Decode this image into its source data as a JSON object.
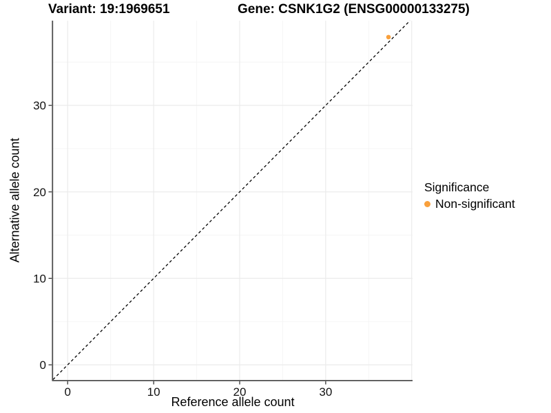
{
  "header": {
    "variant_title": "Variant: 19:1969651",
    "gene_title": "Gene: CSNK1G2 (ENSG00000133275)"
  },
  "chart_data": {
    "type": "scatter",
    "xlabel": "Reference allele count",
    "ylabel": "Alternative allele count",
    "xlim": [
      -1.7,
      40.1
    ],
    "ylim": [
      -1.75,
      39.8
    ],
    "x_ticks": [
      0,
      10,
      20,
      30
    ],
    "y_ticks": [
      0,
      10,
      20,
      30
    ],
    "x_grid_major": [
      0,
      10,
      20,
      30,
      40
    ],
    "x_grid_minor": [
      5,
      15,
      25,
      35
    ],
    "y_grid_major": [
      0,
      10,
      20,
      30
    ],
    "y_grid_minor": [
      5,
      15,
      25,
      35
    ],
    "grid": "on",
    "reference_line": {
      "type": "identity y=x",
      "style": "dashed",
      "color": "#000000"
    },
    "series": [
      {
        "name": "Non-significant",
        "color": "#F9A03C",
        "points": [
          {
            "x": 37.3,
            "y": 37.9
          }
        ]
      }
    ],
    "legend": {
      "position": "right",
      "title": "Significance",
      "items": [
        {
          "label": "Non-significant",
          "color": "#F9A03C"
        }
      ]
    }
  },
  "colors": {
    "accent_orange": "#F9A03C",
    "grid_major": "#EBEBEB",
    "grid_minor": "#F5F5F5",
    "axis_line": "#4D4D4D",
    "tick_mark": "#333333",
    "text": "#111111",
    "background": "#FFFFFF"
  }
}
